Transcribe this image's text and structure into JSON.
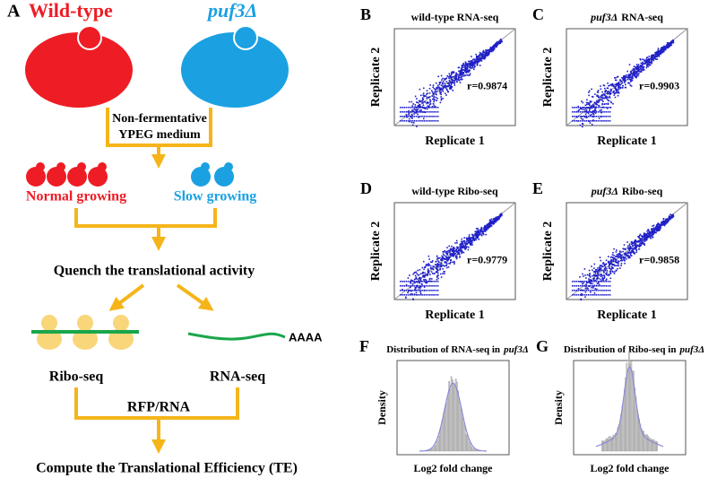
{
  "panel_a": {
    "label": "A",
    "wild_type": "Wild-type",
    "mutant": "puf3Δ",
    "medium_line1": "Non-fermentative",
    "medium_line2": "YPEG medium",
    "normal": "Normal growing",
    "slow": "Slow growing",
    "quench": "Quench the translational activity",
    "polya": "AAAA",
    "ribo": "Ribo-seq",
    "rna": "RNA-seq",
    "ratio": "RFP/RNA",
    "compute": "Compute the Translational Efficiency (TE)"
  },
  "scatter_panels": [
    {
      "label": "B",
      "title_parts": [
        {
          "text": "wild-type RNA-seq",
          "italic": false
        }
      ],
      "x_label": "Replicate 1",
      "y_label": "Replicate 2",
      "r": "r=0.9874"
    },
    {
      "label": "C",
      "title_parts": [
        {
          "text": "puf3Δ",
          "italic": true
        },
        {
          "text": "RNA-seq",
          "italic": false
        }
      ],
      "x_label": "Replicate 1",
      "y_label": "Replicate 2",
      "r": "r=0.9903"
    },
    {
      "label": "D",
      "title_parts": [
        {
          "text": "wild-type Ribo-seq",
          "italic": false
        }
      ],
      "x_label": "Replicate 1",
      "y_label": "Replicate 2",
      "r": "r=0.9779"
    },
    {
      "label": "E",
      "title_parts": [
        {
          "text": "puf3Δ",
          "italic": true
        },
        {
          "text": "Ribo-seq",
          "italic": false
        }
      ],
      "x_label": "Replicate 1",
      "y_label": "Replicate 2",
      "r": "r=0.9858"
    }
  ],
  "histograms": [
    {
      "label": "F",
      "title_parts": [
        {
          "text": "Distribution of RNA-seq in",
          "italic": false
        },
        {
          "text": "puf3Δ",
          "italic": true
        }
      ],
      "x_label": "Log2 fold change",
      "y_label": "Density"
    },
    {
      "label": "G",
      "title_parts": [
        {
          "text": "Distribution of Ribo-seq in",
          "italic": false
        },
        {
          "text": "puf3Δ",
          "italic": true
        }
      ],
      "x_label": "Log2 fold change",
      "y_label": "Density"
    }
  ]
}
